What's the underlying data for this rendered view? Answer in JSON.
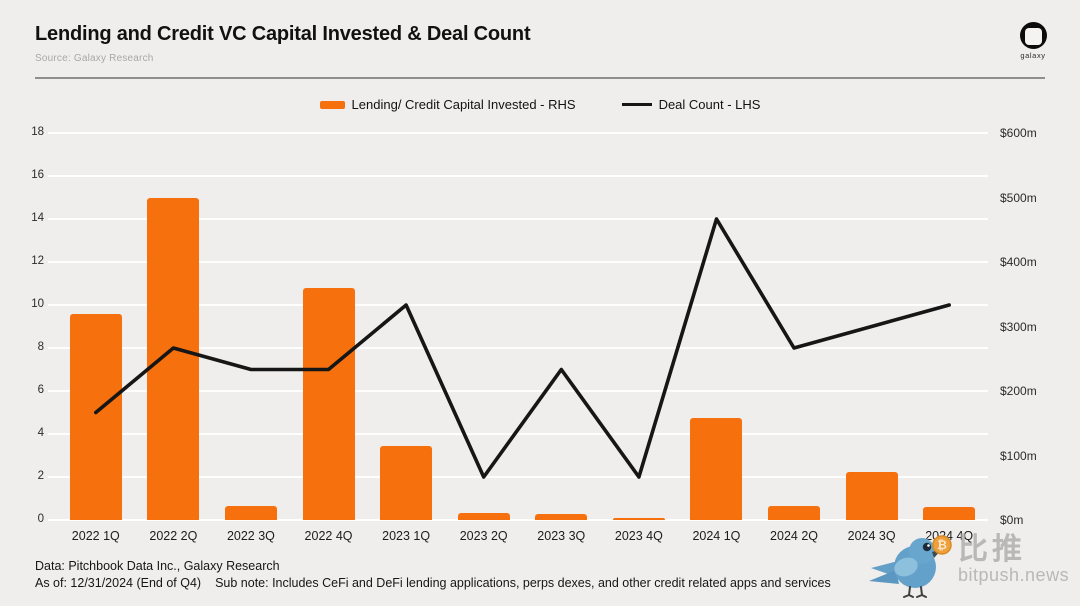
{
  "header": {
    "title": "Lending and Credit VC Capital Invested & Deal Count",
    "source": "Source: Galaxy Research",
    "logo_label": "galaxy"
  },
  "chart_data": {
    "type": "bar",
    "title": "Lending and Credit VC Capital Invested & Deal Count",
    "categories": [
      "2022 1Q",
      "2022 2Q",
      "2022 3Q",
      "2022 4Q",
      "2023 1Q",
      "2023 2Q",
      "2023 3Q",
      "2023 4Q",
      "2024 1Q",
      "2024 2Q",
      "2024 3Q",
      "2024 4Q"
    ],
    "series": [
      {
        "name": "Lending/ Credit Capital Invested - RHS",
        "type": "bar",
        "axis": "right",
        "unit": "$m",
        "color": "#F7700E",
        "values": [
          320,
          500,
          22,
          360,
          114,
          11,
          10,
          3,
          158,
          22,
          75,
          20
        ]
      },
      {
        "name": "Deal Count - LHS",
        "type": "line",
        "axis": "left",
        "color": "#161616",
        "values": [
          5,
          8,
          7,
          7,
          10,
          2,
          7,
          2,
          14,
          8,
          9,
          10
        ]
      }
    ],
    "left_axis": {
      "min": 0,
      "max": 18,
      "tick_step": 2,
      "ticks": [
        0,
        2,
        4,
        6,
        8,
        10,
        12,
        14,
        16,
        18
      ]
    },
    "right_axis": {
      "min": 0,
      "max": 600,
      "tick_step": 100,
      "ticks": [
        "$0m",
        "$100m",
        "$200m",
        "$300m",
        "$400m",
        "$500m",
        "$600m"
      ]
    },
    "grid": "horizontal-on",
    "legend_position": "top-center"
  },
  "footer": {
    "line1": "Data: Pitchbook Data Inc., Galaxy Research",
    "line2a": "As of: 12/31/2024 (End of Q4)",
    "line2b": "Sub note: Includes CeFi and DeFi lending applications, perps dexes, and other credit related apps and services"
  },
  "watermark": {
    "cn": "比推",
    "en": "bitpush.news"
  }
}
